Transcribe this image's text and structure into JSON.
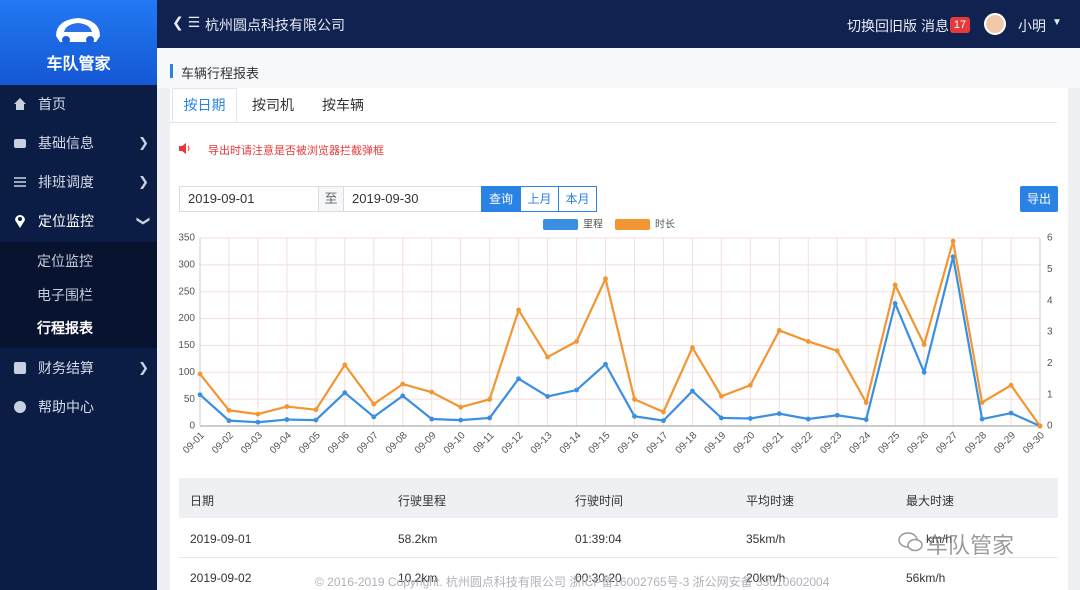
{
  "sidebar": {
    "brand": "车队管家",
    "menu": [
      {
        "label": "首页"
      },
      {
        "label": "基础信息"
      },
      {
        "label": "排班调度"
      },
      {
        "label": "定位监控",
        "children": [
          "定位监控",
          "电子围栏",
          "行程报表"
        ]
      },
      {
        "label": "财务结算"
      },
      {
        "label": "帮助中心"
      }
    ]
  },
  "header": {
    "company": "杭州圆点科技有限公司",
    "switch": "切换回旧版",
    "messages": "消息",
    "badge": 17,
    "user": "小明"
  },
  "page_title": "车辆行程报表",
  "tabs": [
    "按日期",
    "按司机",
    "按车辆"
  ],
  "notice": "导出时请注意是否被浏览器拦截弹框",
  "filter": {
    "start": "2019-09-01",
    "separator": "至",
    "end": "2019-09-30",
    "buttons": [
      "查询",
      "上月",
      "本月"
    ],
    "export": "导出"
  },
  "chart_data": {
    "type": "line",
    "categories": [
      "09-01",
      "09-02",
      "09-03",
      "09-04",
      "09-05",
      "09-06",
      "09-07",
      "09-08",
      "09-09",
      "09-10",
      "09-11",
      "09-12",
      "09-13",
      "09-14",
      "09-15",
      "09-16",
      "09-17",
      "09-18",
      "09-19",
      "09-20",
      "09-21",
      "09-22",
      "09-23",
      "09-24",
      "09-25",
      "09-26",
      "09-27",
      "09-28",
      "09-29",
      "09-30"
    ],
    "series": [
      {
        "name": "里程",
        "color": "#3b8fe0",
        "values": [
          58.2,
          10,
          7,
          12,
          11,
          62,
          17,
          56,
          13,
          11,
          15,
          88,
          55,
          67,
          115,
          18,
          10,
          65,
          15,
          14,
          23,
          13,
          20,
          12,
          228,
          100,
          315,
          13,
          24,
          0
        ]
      },
      {
        "name": "时长",
        "color": "#f29533",
        "axis": "y2",
        "values": [
          1.66,
          0.5,
          0.38,
          0.62,
          0.52,
          1.95,
          0.7,
          1.34,
          1.08,
          0.6,
          0.85,
          3.7,
          2.2,
          2.7,
          4.7,
          0.85,
          0.45,
          2.5,
          0.95,
          1.3,
          3.05,
          2.7,
          2.4,
          0.75,
          4.5,
          2.6,
          5.9,
          0.75,
          1.3,
          0
        ]
      }
    ],
    "ylim": [
      0,
      350
    ],
    "yticks": [
      0,
      50,
      100,
      150,
      200,
      250,
      300,
      350
    ],
    "y2lim": [
      0,
      6
    ],
    "y2ticks": [
      0,
      1,
      2,
      3,
      4,
      5,
      6
    ],
    "grid": true,
    "legend": "top"
  },
  "table": {
    "headers": [
      "日期",
      "行驶里程",
      "行驶时间",
      "平均时速",
      "最大时速"
    ],
    "rows": [
      [
        "2019-09-01",
        "58.2km",
        "01:39:04",
        "35km/h",
        "km/h"
      ],
      [
        "2019-09-02",
        "10.2km",
        "00:30:20",
        "20km/h",
        "56km/h"
      ]
    ]
  },
  "footer": "© 2016-2019 Copyright. 杭州圆点科技有限公司 浙ICP备16002765号-3 浙公网安备 33010602004",
  "watermark": "车队管家"
}
